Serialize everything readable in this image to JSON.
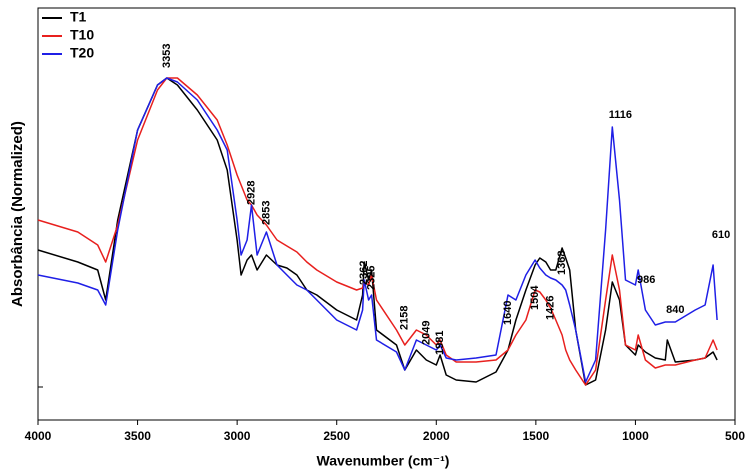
{
  "chart_data": {
    "type": "line",
    "xlabel": "Wavenumber (cm⁻¹)",
    "ylabel": "Absorbância (Normalized)",
    "xlim": [
      4000,
      500
    ],
    "xticks": [
      4000,
      3500,
      3000,
      2500,
      2000,
      1500,
      1000,
      500
    ],
    "ylim": [
      0,
      412
    ],
    "legend": "upper left",
    "x": [
      4000,
      3800,
      3700,
      3660,
      3600,
      3500,
      3400,
      3353,
      3300,
      3200,
      3100,
      3050,
      3000,
      2980,
      2950,
      2928,
      2900,
      2853,
      2800,
      2750,
      2700,
      2650,
      2600,
      2500,
      2400,
      2370,
      2362,
      2340,
      2325,
      2300,
      2200,
      2158,
      2100,
      2050,
      2000,
      1981,
      1950,
      1900,
      1800,
      1700,
      1640,
      1600,
      1550,
      1504,
      1480,
      1450,
      1426,
      1400,
      1368,
      1350,
      1330,
      1300,
      1250,
      1200,
      1150,
      1116,
      1080,
      1050,
      1000,
      986,
      950,
      900,
      850,
      840,
      800,
      700,
      650,
      610,
      590
    ],
    "series": [
      {
        "name": "T1",
        "color": "#000000",
        "values": [
          170,
          158,
          150,
          120,
          200,
          290,
          335,
          342,
          335,
          310,
          280,
          250,
          180,
          145,
          160,
          165,
          150,
          165,
          155,
          152,
          145,
          130,
          125,
          110,
          100,
          125,
          158,
          140,
          150,
          90,
          75,
          50,
          70,
          60,
          55,
          65,
          45,
          40,
          38,
          48,
          70,
          100,
          130,
          155,
          162,
          158,
          150,
          150,
          172,
          162,
          150,
          90,
          35,
          40,
          90,
          138,
          120,
          75,
          65,
          75,
          68,
          62,
          60,
          80,
          58,
          60,
          62,
          68,
          60
        ]
      },
      {
        "name": "T10",
        "color": "#e8201e",
        "values": [
          200,
          188,
          175,
          158,
          195,
          280,
          330,
          342,
          342,
          325,
          300,
          275,
          245,
          235,
          220,
          215,
          205,
          195,
          180,
          174,
          168,
          158,
          150,
          138,
          130,
          132,
          138,
          135,
          145,
          120,
          90,
          75,
          90,
          85,
          75,
          80,
          65,
          58,
          58,
          60,
          70,
          85,
          100,
          130,
          128,
          120,
          112,
          100,
          85,
          70,
          60,
          50,
          35,
          50,
          120,
          165,
          130,
          75,
          70,
          85,
          60,
          52,
          55,
          55,
          55,
          60,
          62,
          80,
          70
        ]
      },
      {
        "name": "T20",
        "color": "#1f1fe6",
        "values": [
          145,
          137,
          130,
          115,
          190,
          290,
          335,
          342,
          338,
          320,
          290,
          270,
          200,
          165,
          180,
          215,
          165,
          188,
          155,
          145,
          135,
          130,
          120,
          100,
          90,
          110,
          140,
          120,
          125,
          80,
          68,
          50,
          80,
          75,
          70,
          75,
          62,
          60,
          62,
          65,
          125,
          120,
          145,
          160,
          152,
          145,
          142,
          140,
          135,
          130,
          115,
          90,
          38,
          60,
          190,
          293,
          220,
          140,
          135,
          150,
          110,
          95,
          98,
          98,
          98,
          110,
          115,
          155,
          100
        ]
      }
    ],
    "annotations": [
      {
        "x": 3353,
        "y": 352,
        "vertical": true
      },
      {
        "x": 2928,
        "y": 215,
        "vertical": true
      },
      {
        "x": 2853,
        "y": 195,
        "vertical": true
      },
      {
        "x": 2362,
        "y": 135,
        "vertical": true
      },
      {
        "x": 2325,
        "y": 130,
        "vertical": true
      },
      {
        "x": 2158,
        "y": 90,
        "vertical": true
      },
      {
        "x": 2049,
        "y": 75,
        "vertical": true
      },
      {
        "x": 1981,
        "y": 65,
        "vertical": true
      },
      {
        "x": 1640,
        "y": 95,
        "vertical": true
      },
      {
        "x": 1504,
        "y": 110,
        "vertical": true
      },
      {
        "x": 1426,
        "y": 100,
        "vertical": true
      },
      {
        "x": 1368,
        "y": 145,
        "vertical": true
      },
      {
        "x": 1116,
        "y": 305,
        "vertical": false
      },
      {
        "x": 986,
        "y": 140,
        "vertical": false
      },
      {
        "x": 840,
        "y": 110,
        "vertical": false
      },
      {
        "x": 610,
        "y": 185,
        "vertical": false
      }
    ]
  }
}
